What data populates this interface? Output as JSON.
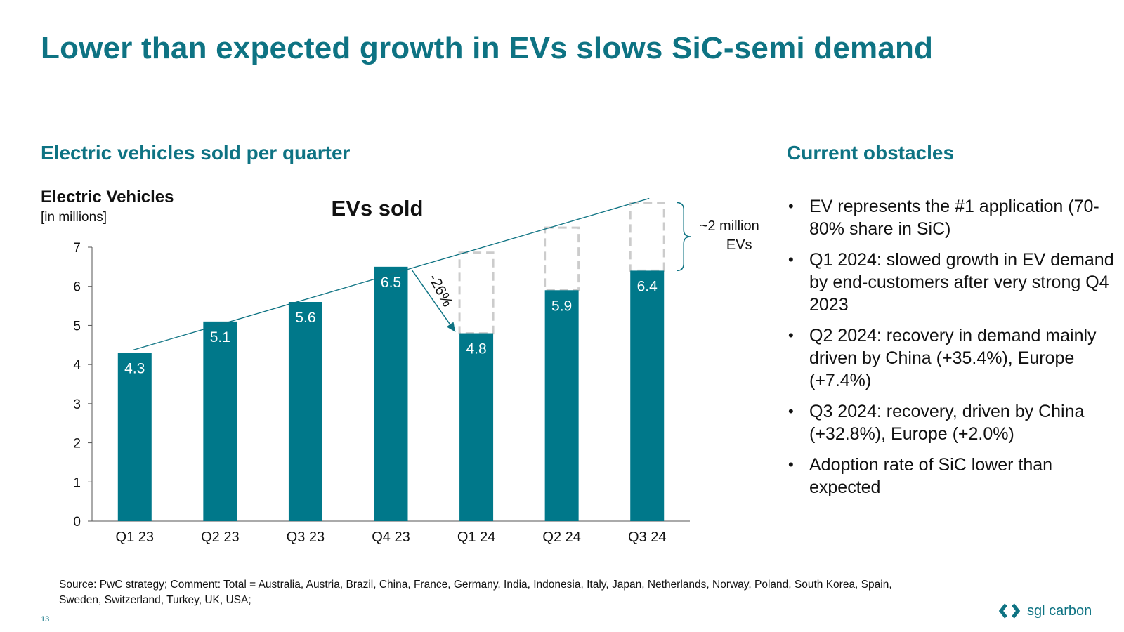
{
  "title": "Lower than expected growth in EVs slows SiC-semi demand",
  "chart_heading": "Electric vehicles sold per quarter",
  "obstacles_heading": "Current obstacles",
  "obstacles": [
    "EV represents the #1 application (70-80% share in SiC)",
    "Q1 2024: slowed growth in EV demand by end-customers after very strong Q4 2023",
    "Q2 2024: recovery in demand mainly driven by China (+35.4%), Europe (+7.4%)",
    "Q3 2024: recovery, driven by China (+32.8%), Europe (+2.0%)",
    "Adoption rate of SiC lower than expected"
  ],
  "footnote": "Source: PwC strategy;   Comment: Total = Australia, Austria, Brazil, China, France, Germany, India, Indonesia, Italy, Japan, Netherlands, Norway, Poland, South Korea, Spain, Sweden, Switzerland, Turkey, UK, USA;",
  "page_number": "13",
  "logo_text": "sgl carbon",
  "colors": {
    "accent": "#0e7383",
    "bar": "#00788a",
    "dashed": "#cccccc"
  },
  "chart_data": {
    "type": "bar",
    "title": "EVs sold",
    "ylabel": "Electric Vehicles",
    "ylabel_unit": "[in millions]",
    "xlabel": "",
    "categories": [
      "Q1 23",
      "Q2 23",
      "Q3 23",
      "Q4 23",
      "Q1 24",
      "Q2 24",
      "Q3 24"
    ],
    "values": [
      4.3,
      5.1,
      5.6,
      6.5,
      4.8,
      5.9,
      6.4
    ],
    "value_labels": [
      "4.3",
      "5.1",
      "5.6",
      "6.5",
      "4.8",
      "5.9",
      "6.4"
    ],
    "expected_trend": [
      4.3,
      4.94,
      5.58,
      6.22,
      6.86,
      7.5,
      8.14
    ],
    "ylim": [
      0,
      7
    ],
    "yticks": [
      0,
      1,
      2,
      3,
      4,
      5,
      6,
      7
    ],
    "grid": false,
    "annotations": {
      "decline_label": "-26%",
      "gap_label_line1": "~2 million",
      "gap_label_line2": "EVs"
    }
  }
}
